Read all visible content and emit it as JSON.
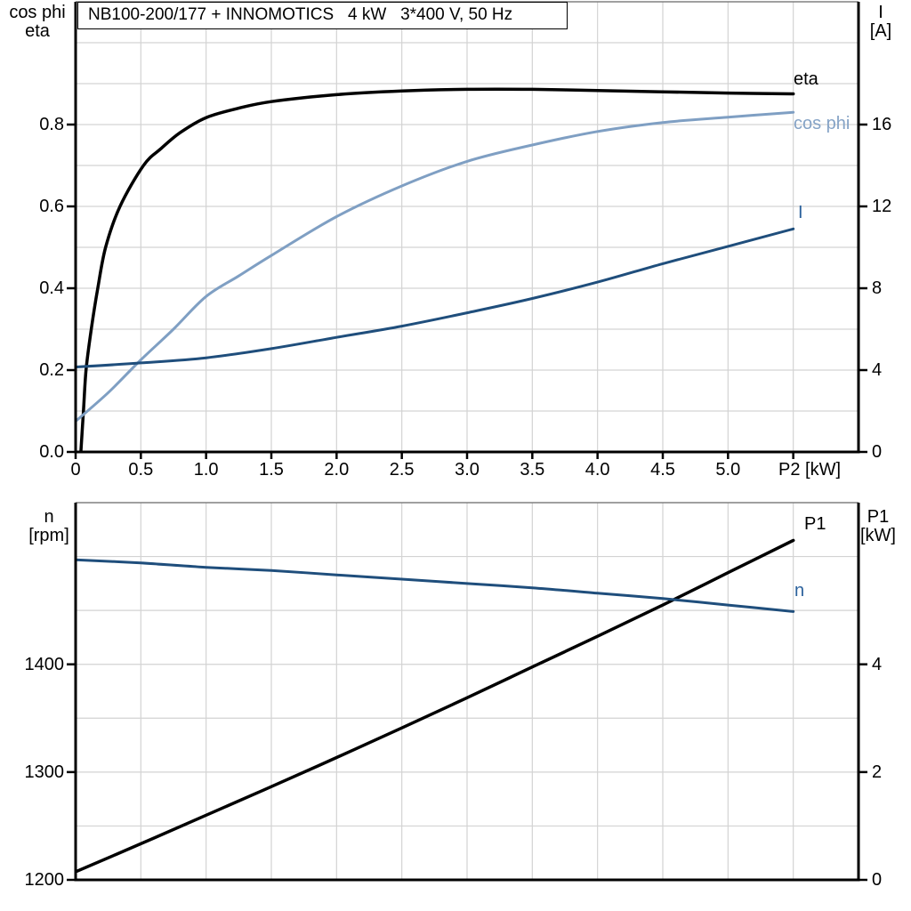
{
  "title_box": {
    "text": "NB100-200/177 + INNOMOTICS   4 kW   3*400 V, 50 Hz"
  },
  "colors": {
    "background": "#ffffff",
    "axis": "#000000",
    "grid": "#d3d3d3",
    "plot_top_border": "#808080",
    "black_curve": "#000000",
    "cos_phi_curve": "#7f9fc3",
    "dark_blue_curve": "#1f4e7c",
    "blue_label": "#2b619c",
    "cos_phi_label": "#85a3c6"
  },
  "chart_data": [
    {
      "type": "line",
      "position": "top",
      "x_axis": {
        "label": "P2 [kW]",
        "min": 0,
        "max": 6,
        "tick_labels": [
          "0",
          "0.5",
          "1.0",
          "1.5",
          "2.0",
          "2.5",
          "3.0",
          "3.5",
          "4.0",
          "4.5",
          "5.0"
        ],
        "tick_values": [
          0,
          0.5,
          1,
          1.5,
          2,
          2.5,
          3,
          3.5,
          4,
          4.5,
          5
        ],
        "tick_mark_values": [
          0,
          0.5,
          1,
          1.5,
          2,
          2.5,
          3,
          3.5,
          4,
          4.5,
          5,
          5.5
        ],
        "grid_values": [
          0.5,
          1,
          1.5,
          2,
          2.5,
          3,
          3.5,
          4,
          4.5,
          5,
          5.5
        ]
      },
      "left_axis": {
        "header": [
          "cos phi",
          "eta"
        ],
        "min": 0,
        "max": 1.1,
        "tick_labels": [
          "0.0",
          "0.2",
          "0.4",
          "0.6",
          "0.8"
        ],
        "tick_values": [
          0,
          0.2,
          0.4,
          0.6,
          0.8
        ],
        "grid_values": [
          0.1,
          0.2,
          0.3,
          0.4,
          0.5,
          0.6,
          0.7,
          0.8,
          0.9,
          1.0
        ]
      },
      "right_axis": {
        "header": [
          "I",
          "[A]"
        ],
        "min": 0,
        "max": 22,
        "tick_labels": [
          "0",
          "4",
          "8",
          "12",
          "16"
        ],
        "tick_values": [
          0,
          4,
          8,
          12,
          16
        ]
      },
      "series": [
        {
          "name": "eta",
          "label": "eta",
          "axis": "left",
          "color_key": "black_curve",
          "label_color_key": "axis",
          "width": 3.5,
          "points": [
            [
              0.04,
              0
            ],
            [
              0.06,
              0.1
            ],
            [
              0.08,
              0.2
            ],
            [
              0.12,
              0.3
            ],
            [
              0.17,
              0.4
            ],
            [
              0.23,
              0.5
            ],
            [
              0.34,
              0.6
            ],
            [
              0.52,
              0.7
            ],
            [
              0.65,
              0.74
            ],
            [
              0.8,
              0.78
            ],
            [
              1.0,
              0.817
            ],
            [
              1.25,
              0.84
            ],
            [
              1.5,
              0.856
            ],
            [
              2.0,
              0.873
            ],
            [
              2.5,
              0.882
            ],
            [
              3.0,
              0.886
            ],
            [
              3.5,
              0.886
            ],
            [
              4.0,
              0.883
            ],
            [
              4.5,
              0.88
            ],
            [
              5.0,
              0.877
            ],
            [
              5.5,
              0.875
            ]
          ]
        },
        {
          "name": "cos phi",
          "label": "cos phi",
          "axis": "left",
          "color_key": "cos_phi_curve",
          "label_color_key": "cos_phi_label",
          "width": 3,
          "points": [
            [
              0,
              0.075
            ],
            [
              0.25,
              0.145
            ],
            [
              0.5,
              0.225
            ],
            [
              0.75,
              0.3
            ],
            [
              1.0,
              0.38
            ],
            [
              1.25,
              0.43
            ],
            [
              1.5,
              0.48
            ],
            [
              2.0,
              0.575
            ],
            [
              2.5,
              0.65
            ],
            [
              3.0,
              0.71
            ],
            [
              3.5,
              0.75
            ],
            [
              4.0,
              0.783
            ],
            [
              4.5,
              0.805
            ],
            [
              5.0,
              0.818
            ],
            [
              5.5,
              0.83
            ]
          ]
        },
        {
          "name": "I",
          "label": "I",
          "axis": "right",
          "color_key": "dark_blue_curve",
          "label_color_key": "blue_label",
          "width": 3,
          "points": [
            [
              0,
              4.15
            ],
            [
              0.5,
              4.35
            ],
            [
              1.0,
              4.6
            ],
            [
              1.5,
              5.05
            ],
            [
              2.0,
              5.6
            ],
            [
              2.5,
              6.15
            ],
            [
              3.0,
              6.8
            ],
            [
              3.5,
              7.5
            ],
            [
              4.0,
              8.3
            ],
            [
              4.5,
              9.2
            ],
            [
              5.0,
              10.05
            ],
            [
              5.5,
              10.9
            ]
          ]
        }
      ]
    },
    {
      "type": "line",
      "position": "bottom",
      "x_axis": {
        "label": "",
        "min": 0,
        "max": 6,
        "tick_labels": [],
        "tick_values": [],
        "tick_mark_values": [],
        "grid_values": [
          0.5,
          1,
          1.5,
          2,
          2.5,
          3,
          3.5,
          4,
          4.5,
          5,
          5.5
        ]
      },
      "left_axis": {
        "header": [
          "n",
          "[rpm]"
        ],
        "min": 1200,
        "max": 1550,
        "tick_labels": [
          "1200",
          "1300",
          "1400"
        ],
        "tick_values": [
          1200,
          1300,
          1400
        ],
        "grid_values": [
          1250,
          1300,
          1350,
          1400,
          1450,
          1500
        ]
      },
      "right_axis": {
        "header": [
          "P1",
          "[kW]"
        ],
        "min": 0,
        "max": 7,
        "tick_labels": [
          "0",
          "2",
          "4"
        ],
        "tick_values": [
          0,
          2,
          4
        ]
      },
      "series": [
        {
          "name": "P1",
          "label": "P1",
          "axis": "right",
          "color_key": "black_curve",
          "label_color_key": "axis",
          "width": 3.5,
          "points": [
            [
              0,
              0.15
            ],
            [
              0.5,
              0.67
            ],
            [
              1.0,
              1.2
            ],
            [
              1.5,
              1.73
            ],
            [
              2.0,
              2.27
            ],
            [
              2.5,
              2.82
            ],
            [
              3.0,
              3.38
            ],
            [
              3.5,
              3.95
            ],
            [
              4.0,
              4.52
            ],
            [
              4.5,
              5.1
            ],
            [
              5.0,
              5.7
            ],
            [
              5.5,
              6.3
            ]
          ]
        },
        {
          "name": "n",
          "label": "n",
          "axis": "left",
          "color_key": "dark_blue_curve",
          "label_color_key": "blue_label",
          "width": 3,
          "points": [
            [
              0,
              1497
            ],
            [
              0.5,
              1494
            ],
            [
              1.0,
              1490
            ],
            [
              1.5,
              1487
            ],
            [
              2.0,
              1483
            ],
            [
              2.5,
              1479
            ],
            [
              3.0,
              1475
            ],
            [
              3.5,
              1471
            ],
            [
              4.0,
              1466
            ],
            [
              4.5,
              1461
            ],
            [
              5.0,
              1455
            ],
            [
              5.5,
              1449
            ]
          ]
        }
      ]
    }
  ]
}
